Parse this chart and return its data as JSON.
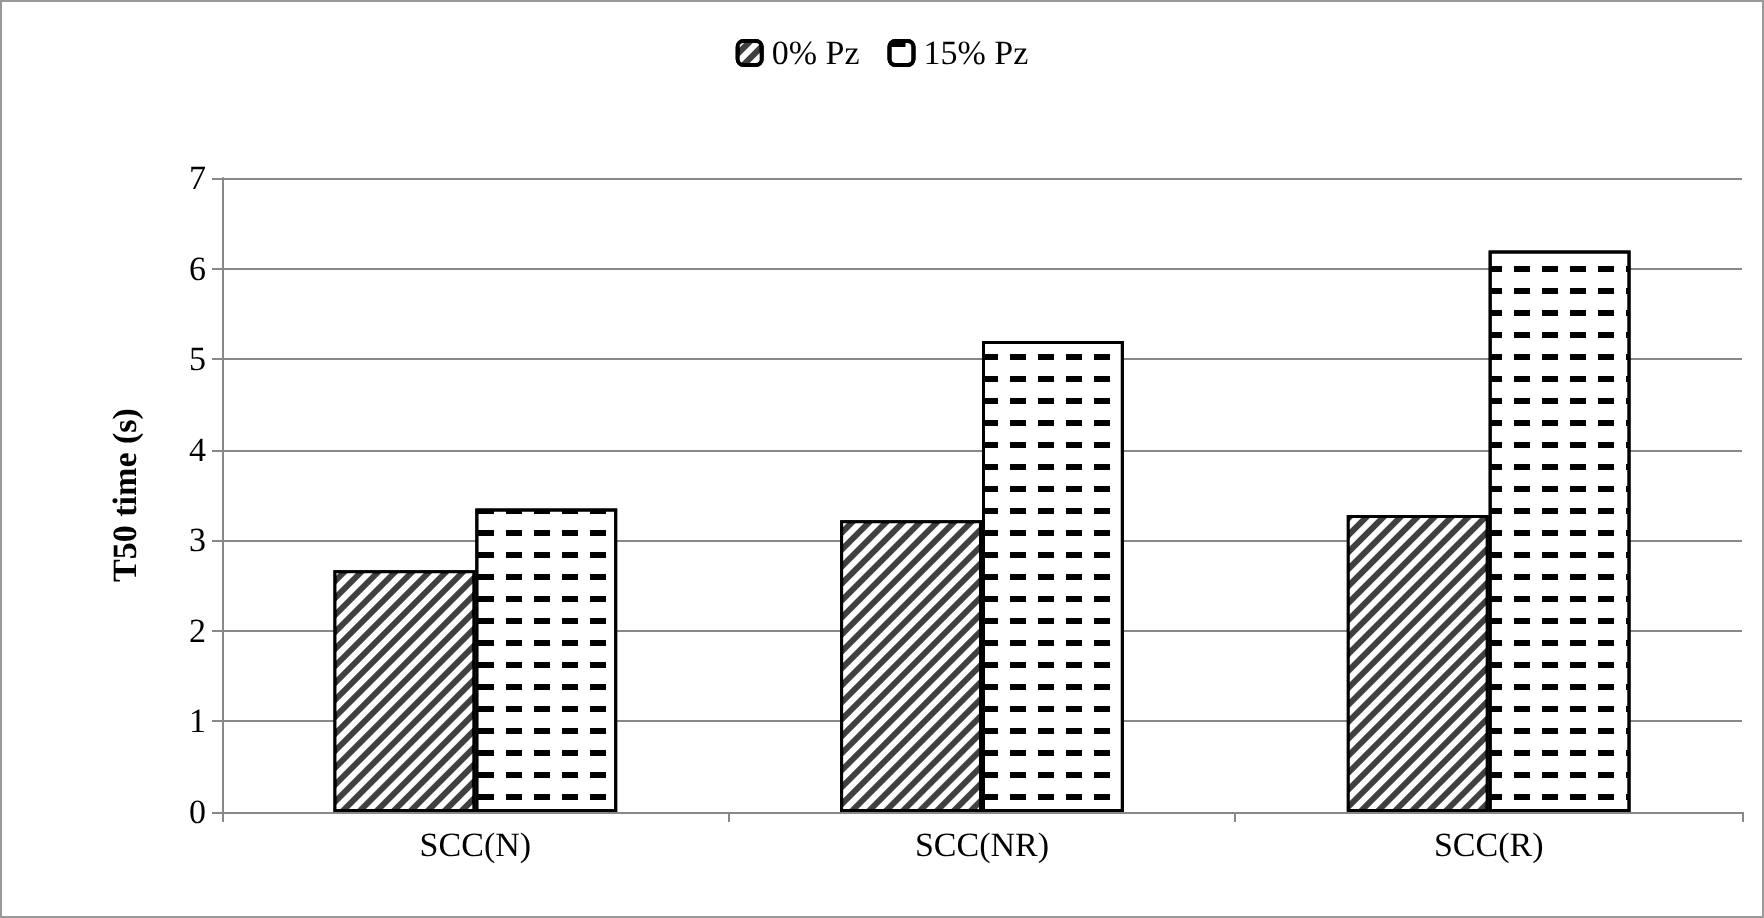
{
  "chart_data": {
    "type": "bar",
    "ylabel": "T50 time (s)",
    "categories": [
      "SCC(N)",
      "SCC(NR)",
      "SCC(R)"
    ],
    "series": [
      {
        "name": "0% Pz",
        "color": "#404040",
        "values": [
          2.67,
          3.22,
          3.28
        ]
      },
      {
        "name": "15% Pz",
        "color": "#ffffff",
        "values": [
          3.35,
          5.2,
          6.2
        ]
      }
    ],
    "ylim": [
      0,
      7
    ],
    "yticks": [
      0,
      1,
      2,
      3,
      4,
      5,
      6,
      7
    ],
    "grid": "y",
    "legend": "top"
  }
}
